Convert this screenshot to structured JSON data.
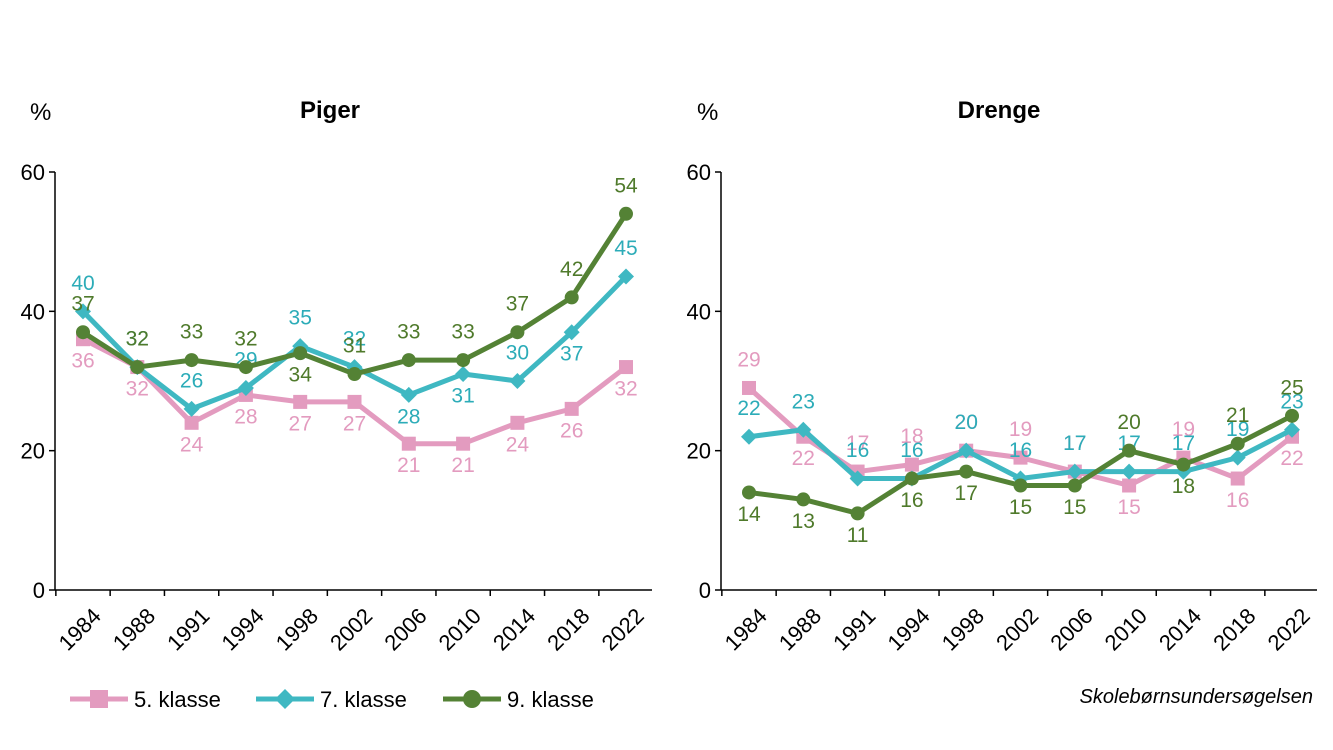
{
  "source_credit": "Skolebørnsundersøgelsen",
  "chart_data": [
    {
      "type": "line",
      "title": "Piger",
      "ylabel": "%",
      "xlabel": "",
      "ylim": [
        0,
        60
      ],
      "yticks": [
        "0",
        "20",
        "40",
        "60"
      ],
      "x": [
        "1984",
        "1988",
        "1991",
        "1994",
        "1998",
        "2002",
        "2006",
        "2010",
        "2014",
        "2018",
        "2022"
      ],
      "series": [
        {
          "name": "5. klasse",
          "values": [
            36,
            32,
            24,
            28,
            27,
            27,
            21,
            21,
            24,
            26,
            32
          ],
          "label_pos": [
            "below",
            "below",
            "below",
            "below",
            "below",
            "below",
            "below",
            "below",
            "below",
            "below",
            "below"
          ]
        },
        {
          "name": "7. klasse",
          "values": [
            40,
            32,
            26,
            29,
            35,
            32,
            28,
            31,
            30,
            37,
            45
          ],
          "label_pos": [
            "above",
            "above",
            "above",
            "above",
            "above",
            "above",
            "below",
            "below",
            "above",
            "below",
            "above"
          ]
        },
        {
          "name": "9. klasse",
          "values": [
            37,
            32,
            33,
            32,
            34,
            31,
            33,
            33,
            37,
            42,
            54
          ],
          "label_pos": [
            "above",
            "above",
            "above",
            "above",
            "below",
            "above",
            "above",
            "above",
            "above",
            "above",
            "above"
          ]
        }
      ]
    },
    {
      "type": "line",
      "title": "Drenge",
      "ylabel": "%",
      "xlabel": "",
      "ylim": [
        0,
        60
      ],
      "yticks": [
        "0",
        "20",
        "40",
        "60"
      ],
      "x": [
        "1984",
        "1988",
        "1991",
        "1994",
        "1998",
        "2002",
        "2006",
        "2010",
        "2014",
        "2018",
        "2022"
      ],
      "series": [
        {
          "name": "5. klasse",
          "values": [
            29,
            22,
            17,
            18,
            20,
            19,
            17,
            15,
            19,
            16,
            22
          ],
          "label_pos": [
            "above",
            "below",
            "above",
            "above",
            "above",
            "above",
            "above",
            "below",
            "above",
            "below",
            "below"
          ]
        },
        {
          "name": "7. klasse",
          "values": [
            22,
            23,
            16,
            16,
            20,
            16,
            17,
            17,
            17,
            19,
            23
          ],
          "label_pos": [
            "above",
            "above",
            "above",
            "above",
            "above",
            "above",
            "above",
            "above",
            "above",
            "above",
            "above"
          ]
        },
        {
          "name": "9. klasse",
          "values": [
            14,
            13,
            11,
            16,
            17,
            15,
            15,
            20,
            18,
            21,
            25
          ],
          "label_pos": [
            "below",
            "below",
            "below",
            "below",
            "below",
            "below",
            "below",
            "above",
            "below",
            "above",
            "above"
          ]
        }
      ]
    }
  ],
  "legend": [
    {
      "label": "5. klasse",
      "marker": "square"
    },
    {
      "label": "7. klasse",
      "marker": "diamond"
    },
    {
      "label": "9. klasse",
      "marker": "circle"
    }
  ],
  "colors": {
    "5. klasse": "#e39bbf",
    "7. klasse": "#3fb8c2",
    "9. klasse": "#548235",
    "label_5. klasse": "#e39bbf",
    "label_7. klasse": "#2cacb8",
    "label_9. klasse": "#4f7a2b"
  }
}
